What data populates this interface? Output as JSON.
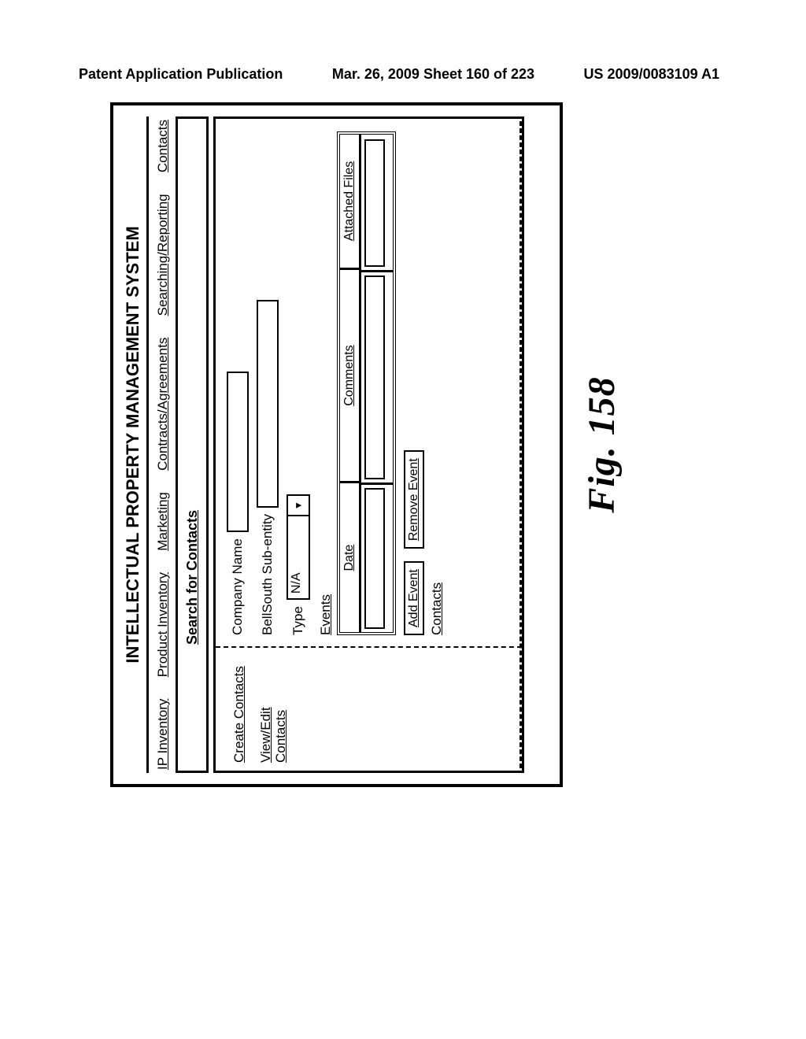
{
  "header": {
    "left": "Patent Application Publication",
    "center": "Mar. 26, 2009  Sheet 160 of 223",
    "right": "US 2009/0083109 A1"
  },
  "system_title": "INTELLECTUAL PROPERTY MANAGEMENT SYSTEM",
  "top_nav": {
    "items": [
      "IP Inventory",
      "Product Inventory",
      "Marketing",
      "Contracts/Agreements",
      "Searching/Reporting",
      "Contacts"
    ]
  },
  "search_bar": {
    "label": "Search for Contacts"
  },
  "sidebar": {
    "create_contacts": "Create Contacts",
    "view_edit_contacts": "View/Edit Contacts"
  },
  "form": {
    "company_name_label": "Company Name",
    "subentity_label": "BellSouth Sub-entity",
    "type_label": "Type",
    "type_value": "N/A",
    "events_label": "Events",
    "contacts_label": "Contacts"
  },
  "events_table": {
    "headers": {
      "date": "Date",
      "comments": "Comments",
      "files": "Attached Files"
    }
  },
  "buttons": {
    "add_event": "Add Event",
    "remove_event": "Remove Event"
  },
  "figure_caption": "Fig. 158"
}
